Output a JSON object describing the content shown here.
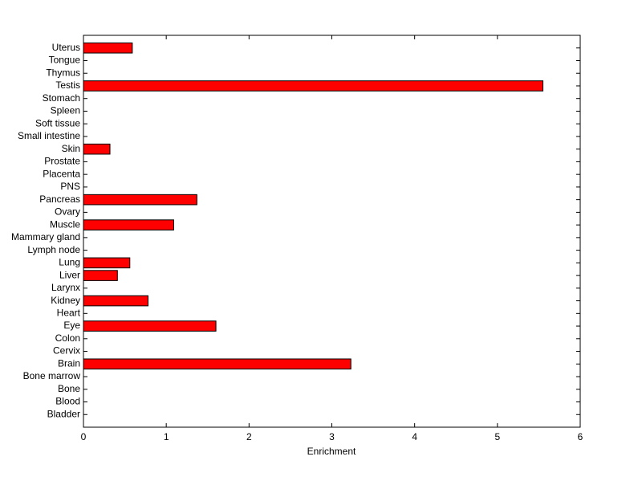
{
  "chart_data": {
    "type": "barh",
    "xlabel": "Enrichment",
    "categories": [
      "Bladder",
      "Blood",
      "Bone",
      "Bone marrow",
      "Brain",
      "Cervix",
      "Colon",
      "Eye",
      "Heart",
      "Kidney",
      "Larynx",
      "Liver",
      "Lung",
      "Lymph node",
      "Mammary gland",
      "Muscle",
      "Ovary",
      "Pancreas",
      "PNS",
      "Placenta",
      "Prostate",
      "Skin",
      "Small intestine",
      "Soft tissue",
      "Spleen",
      "Stomach",
      "Testis",
      "Thymus",
      "Tongue",
      "Uterus"
    ],
    "values": [
      0,
      0,
      0,
      0,
      3.23,
      0,
      0,
      1.6,
      0,
      0.78,
      0,
      0.41,
      0.56,
      0,
      0,
      1.09,
      0,
      1.37,
      0,
      0,
      0,
      0.32,
      0,
      0,
      0,
      0,
      5.55,
      0,
      0,
      0.59
    ],
    "color": "#ff0000",
    "xlim": [
      0,
      6
    ],
    "xticks": [
      0,
      1,
      2,
      3,
      4,
      5,
      6
    ]
  }
}
